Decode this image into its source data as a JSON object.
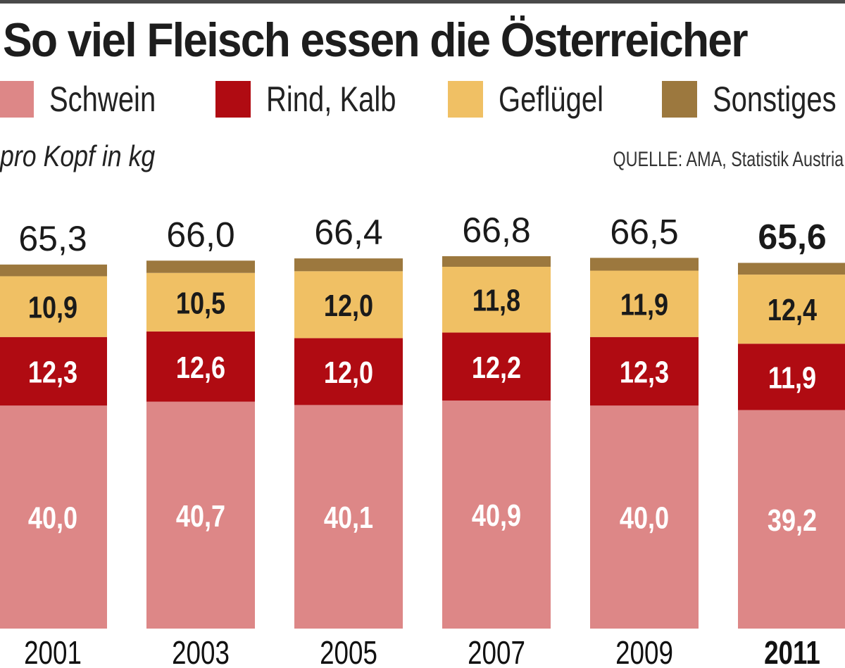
{
  "chart_data": {
    "type": "bar",
    "stacked": true,
    "title": "So viel Fleisch essen die Österreicher",
    "subtitle": "pro Kopf in kg",
    "source": "QUELLE: AMA, Statistik Austria",
    "xlabel": "",
    "ylabel": "pro Kopf in kg",
    "categories": [
      "2001",
      "2003",
      "2005",
      "2007",
      "2009",
      "2011"
    ],
    "highlight_category": "2011",
    "series": [
      {
        "name": "Schwein",
        "color": "#dd8787",
        "label_color": "#ffffff",
        "values": [
          40.0,
          40.7,
          40.1,
          40.9,
          40.0,
          39.2
        ],
        "labels": [
          "40,0",
          "40,7",
          "40,1",
          "40,9",
          "40,0",
          "39,2"
        ]
      },
      {
        "name": "Rind, Kalb",
        "color": "#b00b12",
        "label_color": "#ffffff",
        "values": [
          12.3,
          12.6,
          12.0,
          12.2,
          12.3,
          11.9
        ],
        "labels": [
          "12,3",
          "12,6",
          "12,0",
          "12,2",
          "12,3",
          "11,9"
        ]
      },
      {
        "name": "Geflügel",
        "color": "#f0c064",
        "label_color": "#1a1a1a",
        "values": [
          10.9,
          10.5,
          12.0,
          11.8,
          11.9,
          12.4
        ],
        "labels": [
          "10,9",
          "10,5",
          "12,0",
          "11,8",
          "11,9",
          "12,4"
        ]
      },
      {
        "name": "Sonstiges",
        "color": "#9c783e",
        "label_color": "",
        "values": [
          2.1,
          2.2,
          2.3,
          1.9,
          2.3,
          2.1
        ],
        "labels": [
          "",
          "",
          "",
          "",
          "",
          ""
        ]
      }
    ],
    "totals": [
      65.3,
      66.0,
      66.4,
      66.8,
      66.5,
      65.6
    ],
    "total_labels": [
      "65,3",
      "66,0",
      "66,4",
      "66,8",
      "66,5",
      "65,6"
    ],
    "ylim": [
      0,
      70
    ],
    "grid": false,
    "legend_position": "top"
  },
  "header": {
    "title": "So viel Fleisch essen die Österreicher",
    "unit": "pro Kopf in kg",
    "source": "QUELLE: AMA, Statistik Austria"
  },
  "legend": [
    {
      "label": "Schwein",
      "color": "#dd8787"
    },
    {
      "label": "Rind, Kalb",
      "color": "#b00b12"
    },
    {
      "label": "Geflügel",
      "color": "#f0c064"
    },
    {
      "label": "Sonstiges",
      "color": "#9c783e"
    }
  ]
}
